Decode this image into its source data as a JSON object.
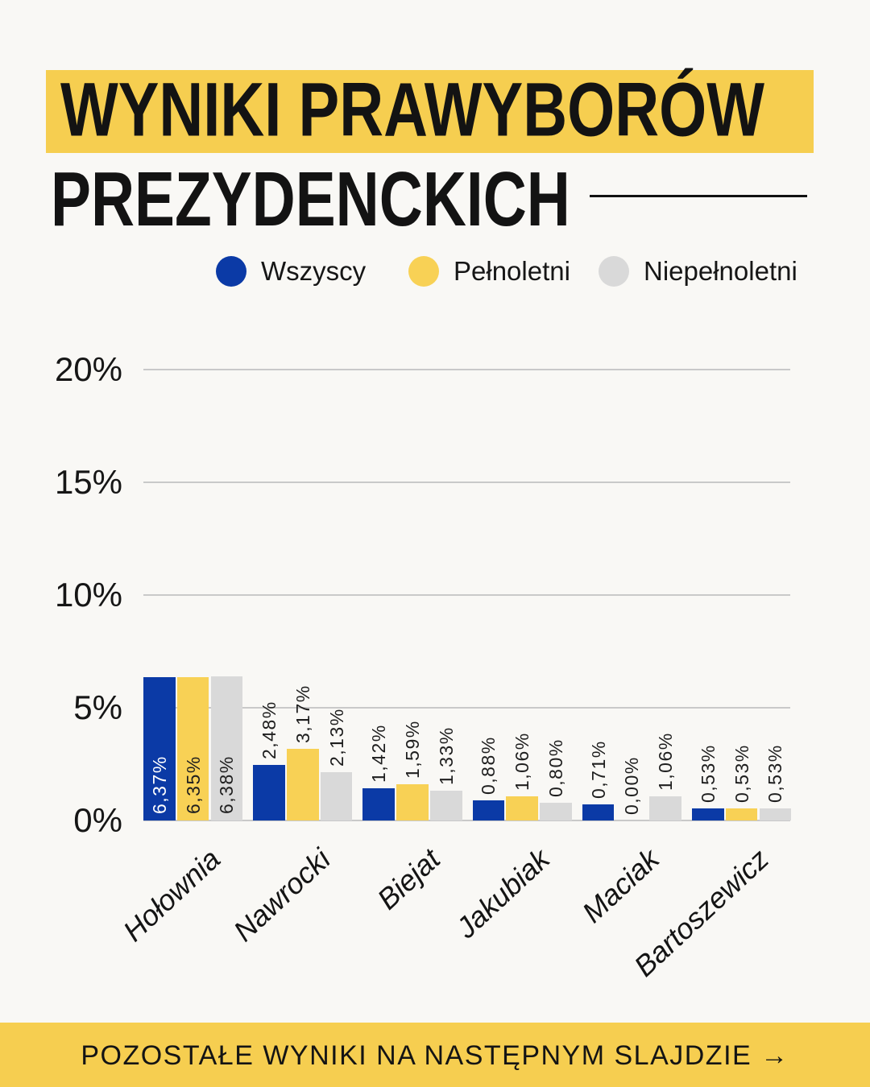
{
  "title": {
    "line1": "WYNIKI PRAWYBORÓW",
    "line2": "PREZYDENCKICH"
  },
  "legend": [
    {
      "label": "Wszyscy",
      "color": "#0B3AA6"
    },
    {
      "label": "Pełnoletni",
      "color": "#F8D155"
    },
    {
      "label": "Niepełnoletni",
      "color": "#D9D9D9"
    }
  ],
  "footer": {
    "text": "POZOSTAŁE WYNIKI NA NASTĘPNYM SLAJDZIE →"
  },
  "colors": {
    "background": "#F9F8F5",
    "banner_yellow": "#F6CE50",
    "gridline": "#C9C9C9",
    "text_dark": "#161616"
  },
  "chart_data": {
    "type": "bar",
    "title": "WYNIKI PRAWYBORÓW PREZYDENCKICH",
    "categories": [
      "Hołownia",
      "Nawrocki",
      "Biejat",
      "Jakubiak",
      "Maciak",
      "Bartoszewicz"
    ],
    "series": [
      {
        "name": "Wszyscy",
        "color": "#0B3AA6",
        "values": [
          6.37,
          2.48,
          1.42,
          0.88,
          0.71,
          0.53
        ],
        "labels": [
          "6,37%",
          "2,48%",
          "1,42%",
          "0,88%",
          "0,71%",
          "0,53%"
        ],
        "inside_label_color": "#FFFFFF"
      },
      {
        "name": "Pełnoletni",
        "color": "#F8D155",
        "values": [
          6.35,
          3.17,
          1.59,
          1.06,
          0.0,
          0.53
        ],
        "labels": [
          "6,35%",
          "3,17%",
          "1,59%",
          "1,06%",
          "0,00%",
          "0,53%"
        ],
        "inside_label_color": "#1F1F1F"
      },
      {
        "name": "Niepełnoletni",
        "color": "#D9D9D9",
        "values": [
          6.38,
          2.13,
          1.33,
          0.8,
          1.06,
          0.53
        ],
        "labels": [
          "6,38%",
          "2,13%",
          "1,33%",
          "0,80%",
          "1,06%",
          "0,53%"
        ],
        "inside_label_color": "#1F1F1F"
      }
    ],
    "xlabel": "",
    "ylabel": "",
    "ylim": [
      0,
      20
    ],
    "yticks": [
      20,
      15,
      10,
      5,
      0
    ],
    "ytick_labels": [
      "20%",
      "15%",
      "10%",
      "5%",
      "0%"
    ],
    "grid": true,
    "legend_position": "top",
    "decimal_separator": ","
  }
}
